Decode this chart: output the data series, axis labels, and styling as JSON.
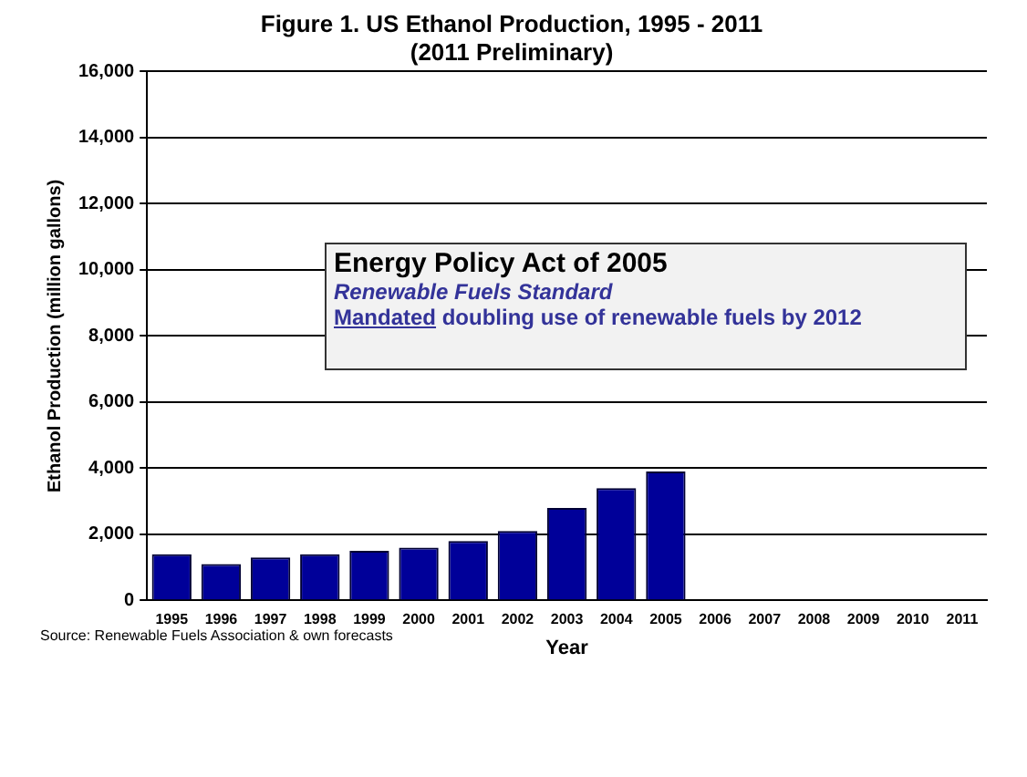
{
  "chart_data": {
    "type": "bar",
    "title": "Figure 1. US Ethanol Production, 1995 - 2011",
    "subtitle": "(2011 Preliminary)",
    "xlabel": "Year",
    "ylabel": "Ethanol Production (million gallons)",
    "categories": [
      "1995",
      "1996",
      "1997",
      "1998",
      "1999",
      "2000",
      "2001",
      "2002",
      "2003",
      "2004",
      "2005",
      "2006",
      "2007",
      "2008",
      "2009",
      "2010",
      "2011"
    ],
    "values": [
      1400,
      1100,
      1300,
      1400,
      1500,
      1600,
      1800,
      2100,
      2800,
      3400,
      3900,
      null,
      null,
      null,
      null,
      null,
      null
    ],
    "color": "#000099",
    "ylim": [
      0,
      16000
    ],
    "yticks": [
      0,
      {
        "value": 2000,
        "label": "2,000"
      },
      {
        "value": 4000,
        "label": "4,000"
      },
      {
        "value": 6000,
        "label": "6,000"
      },
      {
        "value": 8000,
        "label": "8,000"
      },
      {
        "value": 10000,
        "label": "10,000"
      },
      {
        "value": 12000,
        "label": "12,000"
      },
      {
        "value": 14000,
        "label": "14,000"
      },
      {
        "value": 16000,
        "label": "16,000"
      }
    ],
    "grid": "y",
    "legend": false,
    "annotations": [
      "Energy Policy Act of 2005",
      "Renewable Fuels Standard",
      "Mandated doubling use of renewable fuels by 2012",
      "Source: Renewable Fuels Association & own forecasts"
    ]
  }
}
